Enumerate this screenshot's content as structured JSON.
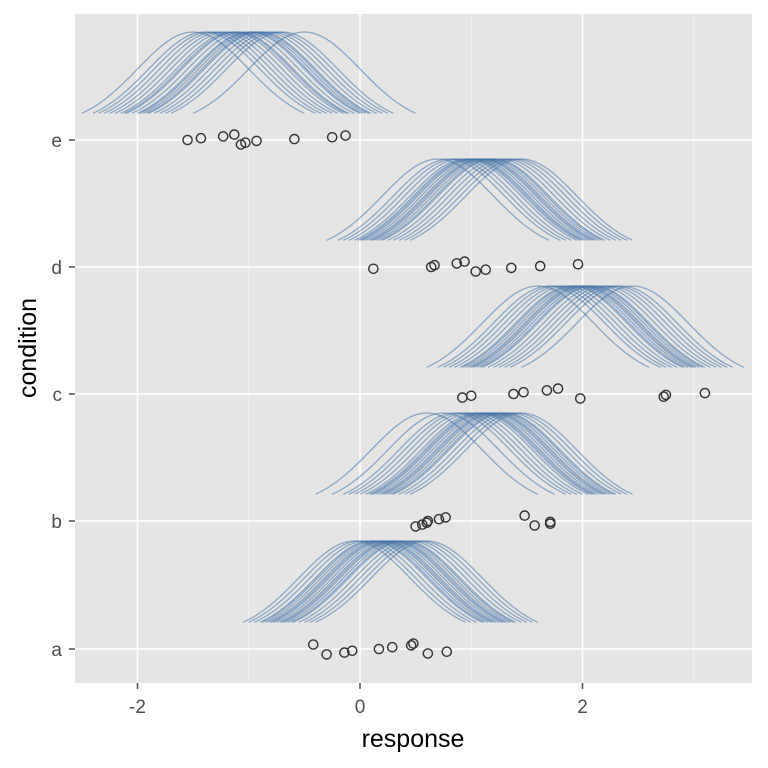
{
  "chart_data": {
    "type": "ridgeline",
    "xlabel": "response",
    "ylabel": "condition",
    "xlim": [
      -2.5,
      3.5
    ],
    "x_ticks": [
      -2,
      0,
      2
    ],
    "x_tick_labels": [
      "-2",
      "0",
      "2"
    ],
    "categories": [
      "a",
      "b",
      "c",
      "d",
      "e"
    ],
    "grid": true,
    "colors": {
      "panel": "#e5e5e5",
      "grid_major": "#ffffff",
      "grid_minor": "#f2f2f2",
      "curve": "#4472a8",
      "point": "#333333",
      "tick": "#4d4d4d"
    },
    "curve_sd": 0.5,
    "posterior_means": {
      "a": [
        -0.05,
        0.0,
        0.05,
        0.1,
        0.12,
        0.15,
        0.18,
        0.2,
        0.22,
        0.25,
        0.28,
        0.3,
        0.32,
        0.35,
        0.38,
        0.4,
        0.45,
        0.5,
        0.55,
        0.6
      ],
      "b": [
        0.6,
        0.75,
        0.85,
        0.9,
        0.95,
        1.0,
        1.05,
        1.08,
        1.1,
        1.12,
        1.15,
        1.18,
        1.2,
        1.22,
        1.25,
        1.28,
        1.3,
        1.35,
        1.4,
        1.45
      ],
      "c": [
        1.6,
        1.7,
        1.75,
        1.8,
        1.85,
        1.9,
        1.92,
        1.95,
        1.98,
        2.0,
        2.02,
        2.05,
        2.08,
        2.1,
        2.15,
        2.2,
        2.25,
        2.3,
        2.35,
        2.45
      ],
      "d": [
        0.7,
        0.8,
        0.85,
        0.9,
        0.95,
        0.98,
        1.0,
        1.02,
        1.05,
        1.08,
        1.1,
        1.12,
        1.15,
        1.18,
        1.2,
        1.25,
        1.3,
        1.35,
        1.4,
        1.45
      ],
      "e": [
        -1.5,
        -1.4,
        -1.35,
        -1.3,
        -1.25,
        -1.2,
        -1.15,
        -1.12,
        -1.1,
        -1.05,
        -1.0,
        -0.98,
        -0.95,
        -0.92,
        -0.9,
        -0.85,
        -0.8,
        -0.75,
        -0.7,
        -0.5
      ]
    },
    "observations": {
      "a": [
        -0.42,
        -0.3,
        -0.14,
        -0.07,
        0.17,
        0.29,
        0.46,
        0.48,
        0.61,
        0.78
      ],
      "b": [
        0.5,
        0.56,
        0.6,
        0.61,
        0.71,
        0.77,
        1.48,
        1.57,
        1.71,
        1.71
      ],
      "c": [
        0.92,
        1.0,
        1.38,
        1.47,
        1.68,
        1.78,
        1.98,
        2.73,
        2.75,
        3.1
      ],
      "d": [
        0.12,
        0.64,
        0.67,
        0.87,
        0.94,
        1.04,
        1.13,
        1.36,
        1.62,
        1.96
      ],
      "e": [
        -1.55,
        -1.43,
        -1.23,
        -1.13,
        -1.07,
        -1.03,
        -0.93,
        -0.59,
        -0.25,
        -0.13
      ]
    }
  }
}
